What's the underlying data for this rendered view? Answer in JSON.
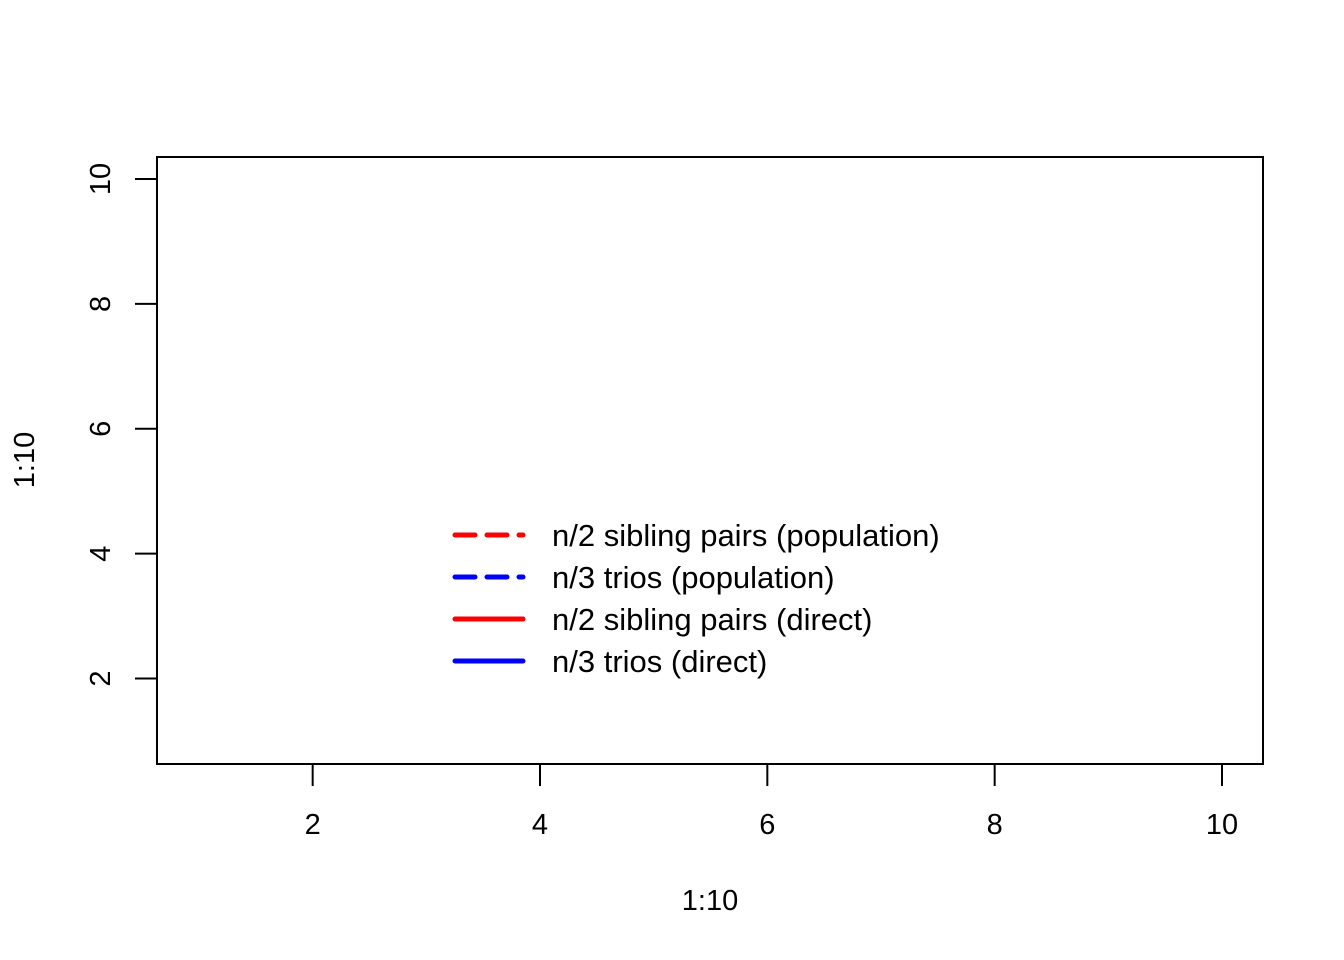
{
  "chart_data": {
    "type": "line",
    "xlabel": "1:10",
    "ylabel": "1:10",
    "xlim": [
      1,
      10
    ],
    "ylim": [
      1,
      10
    ],
    "x_ticks": [
      "2",
      "4",
      "6",
      "8",
      "10"
    ],
    "y_ticks": [
      "2",
      "4",
      "6",
      "8",
      "10"
    ],
    "grid": false,
    "legend_position": "bottom-center",
    "series": [
      {
        "name": "n/2 sibling pairs (population)",
        "color": "#ff0000",
        "line_style": "dashed",
        "values": []
      },
      {
        "name": "n/3 trios (population)",
        "color": "#0000ff",
        "line_style": "dashed",
        "values": []
      },
      {
        "name": "n/2 sibling pairs (direct)",
        "color": "#ff0000",
        "line_style": "solid",
        "values": []
      },
      {
        "name": "n/3 trios (direct)",
        "color": "#0000ff",
        "line_style": "solid",
        "values": []
      }
    ]
  }
}
